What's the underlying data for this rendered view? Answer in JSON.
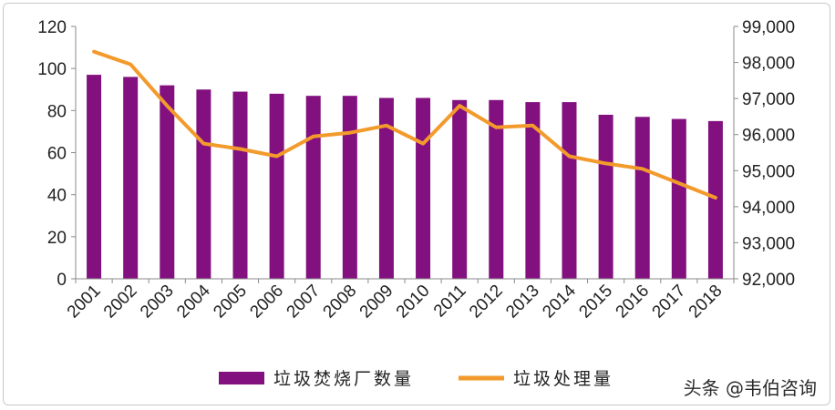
{
  "chart_data": {
    "type": "bar+line",
    "categories": [
      "2001",
      "2002",
      "2003",
      "2004",
      "2005",
      "2006",
      "2007",
      "2008",
      "2009",
      "2010",
      "2011",
      "2012",
      "2013",
      "2014",
      "2015",
      "2016",
      "2017",
      "2018"
    ],
    "series": [
      {
        "name": "垃圾焚烧厂数量",
        "type": "bar",
        "axis": "left",
        "color": "#82117f",
        "values": [
          97,
          96,
          92,
          90,
          89,
          88,
          87,
          87,
          86,
          86,
          85,
          85,
          84,
          84,
          78,
          77,
          76,
          75
        ]
      },
      {
        "name": "垃圾处理量",
        "type": "line",
        "axis": "right",
        "color": "#f39a2c",
        "values": [
          98300,
          97950,
          96800,
          95750,
          95600,
          95400,
          95950,
          96050,
          96250,
          95750,
          96800,
          96200,
          96250,
          95400,
          95200,
          95050,
          94650,
          94250
        ]
      }
    ],
    "y_left": {
      "min": 0,
      "max": 120,
      "ticks": [
        "0",
        "20",
        "40",
        "60",
        "80",
        "100",
        "120"
      ]
    },
    "y_right": {
      "min": 92000,
      "max": 99000,
      "ticks": [
        "92,000",
        "93,000",
        "94,000",
        "95,000",
        "96,000",
        "97,000",
        "98,000",
        "99,000"
      ]
    },
    "legend_position": "bottom",
    "grid": false
  },
  "watermark": "头条 @韦伯咨询"
}
